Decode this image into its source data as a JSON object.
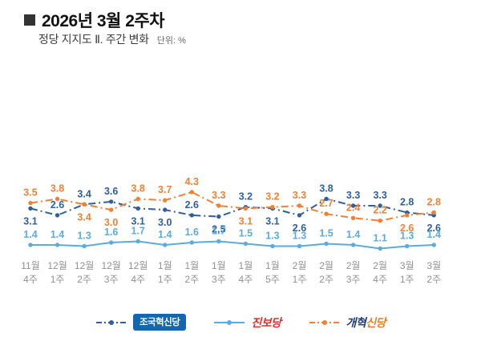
{
  "header": {
    "title": "2026년 3월 2주차",
    "subtitle": "정당 지지도 Ⅱ. 주간 변화",
    "unit_label": "단위: %"
  },
  "chart_data": {
    "type": "line",
    "title": "정당 지지도 Ⅱ. 주간 변화",
    "unit": "%",
    "grid": false,
    "legend_position": "bottom",
    "ylim": [
      0,
      5
    ],
    "x_labels": [
      [
        "11월",
        "4주"
      ],
      [
        "12월",
        "1주"
      ],
      [
        "12월",
        "2주"
      ],
      [
        "12월",
        "3주"
      ],
      [
        "12월",
        "4주"
      ],
      [
        "1월",
        "1주"
      ],
      [
        "1월",
        "2주"
      ],
      [
        "1월",
        "3주"
      ],
      [
        "1월",
        "4주"
      ],
      [
        "1월",
        "5주"
      ],
      [
        "2월",
        "1주"
      ],
      [
        "2월",
        "2주"
      ],
      [
        "2월",
        "3주"
      ],
      [
        "2월",
        "4주"
      ],
      [
        "3월",
        "1주"
      ],
      [
        "3월",
        "2주"
      ]
    ],
    "series": [
      {
        "name": "조국혁신당",
        "color": "#2e5f9e",
        "line_style": "dash-dot",
        "values": [
          3.1,
          2.6,
          3.4,
          3.6,
          3.1,
          3.0,
          2.6,
          2.5,
          3.2,
          3.1,
          2.6,
          3.8,
          3.3,
          3.3,
          2.8,
          2.6
        ]
      },
      {
        "name": "진보당",
        "color": "#5aabdf",
        "line_style": "solid",
        "values": [
          1.4,
          1.4,
          1.3,
          1.6,
          1.7,
          1.4,
          1.6,
          1.7,
          1.5,
          1.3,
          1.3,
          1.5,
          1.4,
          1.1,
          1.3,
          1.4
        ]
      },
      {
        "name": "개혁신당",
        "color": "#f08132",
        "line_style": "dash-dot",
        "values": [
          3.5,
          3.8,
          3.4,
          3.0,
          3.8,
          3.7,
          4.3,
          3.3,
          3.1,
          3.2,
          3.3,
          2.7,
          2.4,
          2.2,
          2.6,
          2.8
        ]
      }
    ]
  },
  "legend": {
    "items": [
      {
        "label": "조국혁신당",
        "style": "badge",
        "bg": "#1565b0",
        "text_color": "#ffffff",
        "line_color": "#2e5f9e",
        "line_style": "dash-dot"
      },
      {
        "label": "진보당",
        "style": "wordmark",
        "text_color": "#e02f28",
        "line_color": "#5aabdf",
        "line_style": "solid"
      },
      {
        "label": "개혁신당",
        "label_a": "개혁",
        "label_b": "신당",
        "style": "two-tone",
        "color_a": "#1f3b73",
        "color_b": "#f07d1f",
        "line_color": "#f08132",
        "line_style": "dash-dot"
      }
    ]
  }
}
